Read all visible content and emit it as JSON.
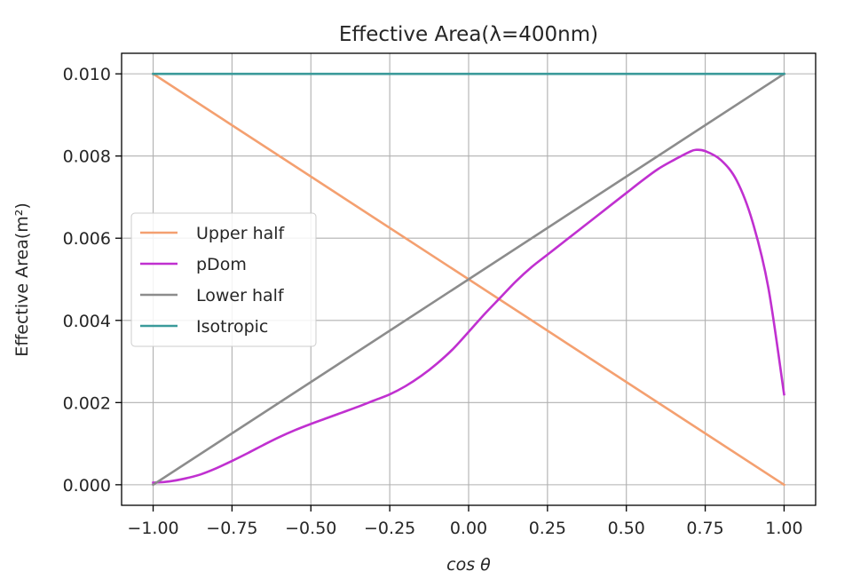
{
  "chart_data": {
    "type": "line",
    "title": "Effective Area(λ=400nm)",
    "xlabel": "cos θ",
    "ylabel": "Effective Area(m²)",
    "xlim": [
      -1.1,
      1.1
    ],
    "ylim": [
      -0.0005,
      0.0105
    ],
    "xticks": [
      -1.0,
      -0.75,
      -0.5,
      -0.25,
      0.0,
      0.25,
      0.5,
      0.75,
      1.0
    ],
    "xtick_labels": [
      "−1.00",
      "−0.75",
      "−0.50",
      "−0.25",
      "0.00",
      "0.25",
      "0.50",
      "0.75",
      "1.00"
    ],
    "yticks": [
      0.0,
      0.002,
      0.004,
      0.006,
      0.008,
      0.01
    ],
    "ytick_labels": [
      "0.000",
      "0.002",
      "0.004",
      "0.006",
      "0.008",
      "0.010"
    ],
    "grid": true,
    "legend_position": "center-left",
    "series": [
      {
        "name": "Upper half",
        "color": "#f4a070",
        "x": [
          -1.0,
          1.0
        ],
        "y": [
          0.01,
          0.0
        ]
      },
      {
        "name": "pDom",
        "color": "#c030d0",
        "x": [
          -1.0,
          -0.95,
          -0.9,
          -0.85,
          -0.8,
          -0.75,
          -0.7,
          -0.65,
          -0.6,
          -0.55,
          -0.5,
          -0.45,
          -0.4,
          -0.35,
          -0.3,
          -0.25,
          -0.2,
          -0.15,
          -0.1,
          -0.05,
          0.0,
          0.05,
          0.1,
          0.15,
          0.2,
          0.25,
          0.3,
          0.35,
          0.4,
          0.45,
          0.5,
          0.55,
          0.6,
          0.65,
          0.7,
          0.72,
          0.75,
          0.8,
          0.85,
          0.9,
          0.95,
          1.0
        ],
        "y": [
          5e-05,
          8e-05,
          0.00015,
          0.00025,
          0.0004,
          0.00058,
          0.00077,
          0.00097,
          0.00116,
          0.00133,
          0.00148,
          0.00162,
          0.00176,
          0.0019,
          0.00205,
          0.0022,
          0.0024,
          0.00265,
          0.00295,
          0.0033,
          0.00372,
          0.00415,
          0.00455,
          0.00495,
          0.0053,
          0.0056,
          0.0059,
          0.0062,
          0.0065,
          0.0068,
          0.0071,
          0.0074,
          0.00768,
          0.0079,
          0.0081,
          0.00815,
          0.00812,
          0.0079,
          0.0074,
          0.0064,
          0.0048,
          0.0022
        ]
      },
      {
        "name": "Lower half",
        "color": "#8c8c8c",
        "x": [
          -1.0,
          1.0
        ],
        "y": [
          0.0,
          0.01
        ]
      },
      {
        "name": "Isotropic",
        "color": "#3a9a9a",
        "x": [
          -1.0,
          1.0
        ],
        "y": [
          0.01,
          0.01
        ]
      }
    ]
  }
}
